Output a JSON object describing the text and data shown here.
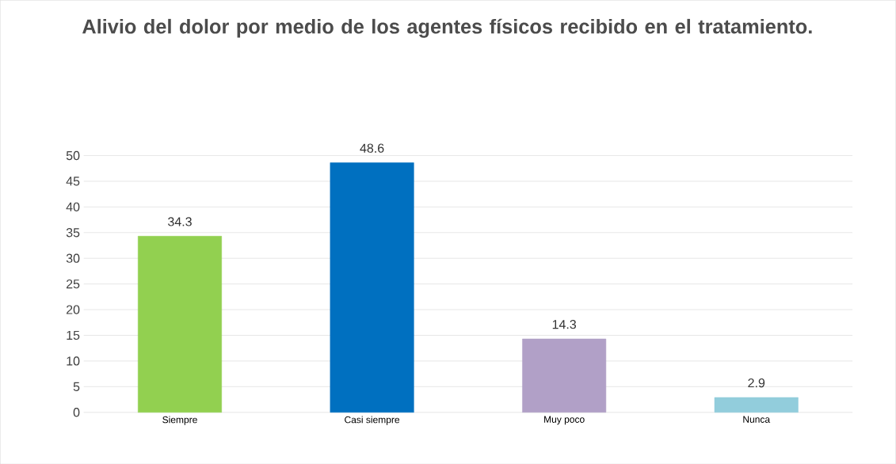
{
  "chart_data": {
    "type": "bar",
    "title": "Alivio del dolor por medio de los agentes físicos recibido en el tratamiento.",
    "categories": [
      "Siempre",
      "Casi siempre",
      "Muy poco",
      "Nunca"
    ],
    "values": [
      34.3,
      48.6,
      14.3,
      2.9
    ],
    "colors": [
      "#92d050",
      "#0070c0",
      "#b1a0c7",
      "#92cddc"
    ],
    "ylim": [
      0,
      50
    ],
    "yticks": [
      0,
      5,
      10,
      15,
      20,
      25,
      30,
      35,
      40,
      45,
      50
    ],
    "grid": "y",
    "data_labels": true
  }
}
